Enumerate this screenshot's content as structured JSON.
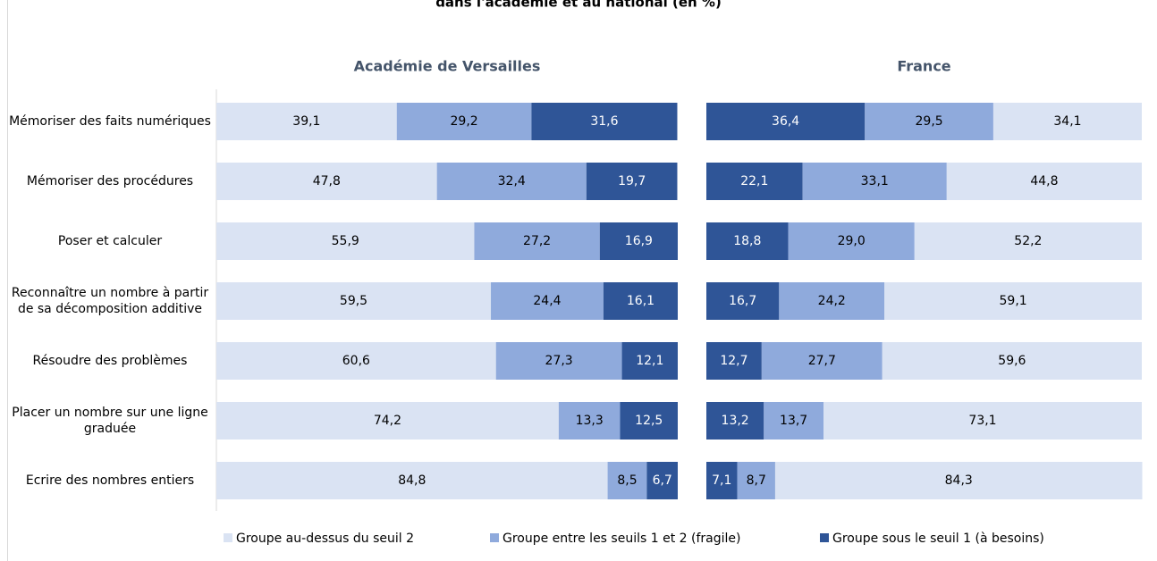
{
  "title": "dans l'académie et au national (en %)",
  "chart_data": [
    {
      "type": "bar",
      "orientation": "horizontal",
      "stacked": true,
      "title": "Académie de Versailles",
      "categories": [
        "Mémoriser des faits numériques",
        "Mémoriser des procédures",
        "Poser et calculer",
        "Reconnaître un nombre à partir de sa décomposition additive",
        "Résoudre des problèmes",
        "Placer un nombre sur une ligne graduée",
        "Ecrire des nombres entiers"
      ],
      "xlim": [
        0,
        100
      ],
      "series": [
        {
          "name": "Groupe au-dessus du seuil 2",
          "color": "#dae3f3",
          "values": [
            39.1,
            47.8,
            55.9,
            59.5,
            60.6,
            74.2,
            84.8
          ],
          "value_labels": [
            "39,1",
            "47,8",
            "55,9",
            "59,5",
            "60,6",
            "74,2",
            "84,8"
          ]
        },
        {
          "name": "Groupe entre les seuils 1 et 2 (fragile)",
          "color": "#8faadc",
          "values": [
            29.2,
            32.4,
            27.2,
            24.4,
            27.3,
            13.3,
            8.5
          ],
          "value_labels": [
            "29,2",
            "32,4",
            "27,2",
            "24,4",
            "27,3",
            "13,3",
            "8,5"
          ]
        },
        {
          "name": "Groupe sous le seuil 1 (à besoins)",
          "color": "#2f5597",
          "values": [
            31.6,
            19.7,
            16.9,
            16.1,
            12.1,
            12.5,
            6.7
          ],
          "value_labels": [
            "31,6",
            "19,7",
            "16,9",
            "16,1",
            "12,1",
            "12,5",
            "6,7"
          ]
        }
      ]
    },
    {
      "type": "bar",
      "orientation": "horizontal",
      "stacked": true,
      "title": "France",
      "xlim": [
        0,
        100
      ],
      "series": [
        {
          "color": "#2f5597",
          "values": [
            36.4,
            22.1,
            18.8,
            16.7,
            12.7,
            13.2,
            7.1
          ],
          "value_labels": [
            "36,4",
            "22,1",
            "18,8",
            "16,7",
            "12,7",
            "13,2",
            "7,1"
          ]
        },
        {
          "color": "#8faadc",
          "values": [
            29.5,
            33.1,
            29.0,
            24.2,
            27.7,
            13.7,
            8.7
          ],
          "value_labels": [
            "29,5",
            "33,1",
            "29,0",
            "24,2",
            "27,7",
            "13,7",
            "8,7"
          ]
        },
        {
          "color": "#dae3f3",
          "values": [
            34.1,
            44.8,
            52.2,
            59.1,
            59.6,
            73.1,
            84.3
          ],
          "value_labels": [
            "34,1",
            "44,8",
            "52,2",
            "59,1",
            "59,6",
            "73,1",
            "84,3"
          ]
        }
      ]
    }
  ]
}
